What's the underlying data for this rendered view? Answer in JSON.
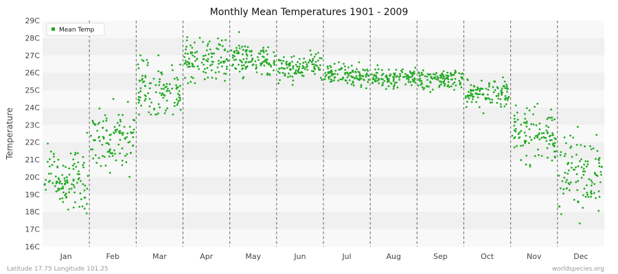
{
  "chart_data": {
    "type": "scatter",
    "title": "Monthly Mean Temperatures 1901 - 2009",
    "xlabel": "",
    "ylabel": "Temperature",
    "ylim": [
      16,
      29
    ],
    "y_ticks": [
      "16C",
      "17C",
      "18C",
      "19C",
      "20C",
      "21C",
      "22C",
      "23C",
      "24C",
      "25C",
      "26C",
      "27C",
      "28C",
      "29C"
    ],
    "months": [
      "Jan",
      "Feb",
      "Mar",
      "Apr",
      "May",
      "Jun",
      "Jul",
      "Aug",
      "Sep",
      "Oct",
      "Nov",
      "Dec"
    ],
    "grid": "alternating horizontal bands, dashed vertical month separators",
    "legend": {
      "position": "top-left",
      "entries": [
        "Mean Temp"
      ]
    },
    "series": [
      {
        "name": "Mean Temp",
        "color": "#22aa22",
        "months_stats": [
          {
            "month": "Jan",
            "mean": 19.9,
            "spread": 1.0,
            "min": 17.2,
            "max": 23.0
          },
          {
            "month": "Feb",
            "mean": 22.2,
            "spread": 0.9,
            "min": 19.8,
            "max": 24.6
          },
          {
            "month": "Mar",
            "mean": 25.1,
            "spread": 0.8,
            "min": 23.6,
            "max": 27.0
          },
          {
            "month": "Apr",
            "mean": 26.8,
            "spread": 0.6,
            "min": 25.4,
            "max": 28.9
          },
          {
            "month": "May",
            "mean": 26.7,
            "spread": 0.5,
            "min": 25.2,
            "max": 28.5
          },
          {
            "month": "Jun",
            "mean": 26.3,
            "spread": 0.4,
            "min": 25.3,
            "max": 27.7
          },
          {
            "month": "Jul",
            "mean": 25.8,
            "spread": 0.3,
            "min": 24.8,
            "max": 26.6
          },
          {
            "month": "Aug",
            "mean": 25.7,
            "spread": 0.3,
            "min": 25.0,
            "max": 26.6
          },
          {
            "month": "Sep",
            "mean": 25.6,
            "spread": 0.3,
            "min": 24.9,
            "max": 26.4
          },
          {
            "month": "Oct",
            "mean": 24.8,
            "spread": 0.4,
            "min": 23.6,
            "max": 25.8
          },
          {
            "month": "Nov",
            "mean": 22.5,
            "spread": 0.8,
            "min": 20.3,
            "max": 24.8
          },
          {
            "month": "Dec",
            "mean": 20.0,
            "spread": 1.1,
            "min": 16.5,
            "max": 23.3
          }
        ],
        "years": [
          1901,
          2009
        ]
      }
    ]
  },
  "footer": {
    "left": "Latitude 17.75 Longitude 101.25",
    "right": "worldspecies.org"
  },
  "colors": {
    "band_light": "#f8f8f8",
    "band_dark": "#f0f0f0",
    "separator": "#666666",
    "point": "#22aa22"
  }
}
